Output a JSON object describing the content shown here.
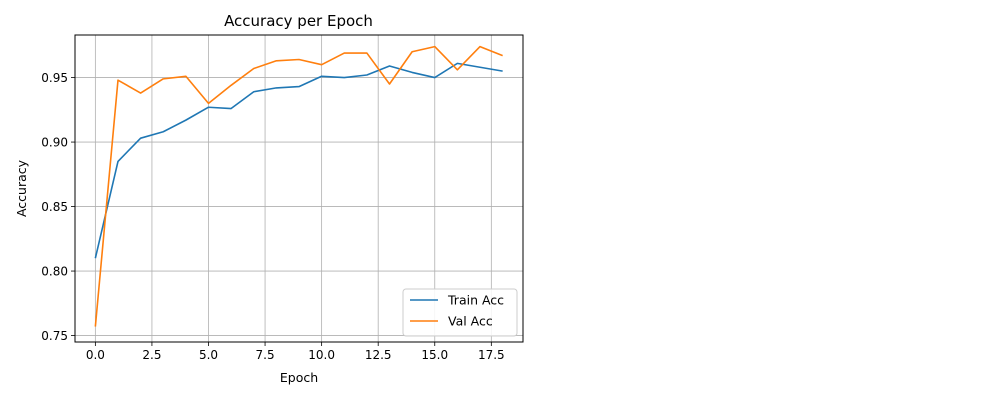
{
  "chart_data": {
    "type": "line",
    "title": "Accuracy per Epoch",
    "xlabel": "Epoch",
    "ylabel": "Accuracy",
    "xlim": [
      -0.9,
      18.9
    ],
    "ylim": [
      0.745,
      0.983
    ],
    "xticks": [
      0.0,
      2.5,
      5.0,
      7.5,
      10.0,
      12.5,
      15.0,
      17.5
    ],
    "xtick_labels": [
      "0.0",
      "2.5",
      "5.0",
      "7.5",
      "10.0",
      "12.5",
      "15.0",
      "17.5"
    ],
    "yticks": [
      0.75,
      0.8,
      0.85,
      0.9,
      0.95
    ],
    "ytick_labels": [
      "0.75",
      "0.80",
      "0.85",
      "0.90",
      "0.95"
    ],
    "grid": true,
    "legend_position": "lower-right",
    "x": [
      0,
      1,
      2,
      3,
      4,
      5,
      6,
      7,
      8,
      9,
      10,
      11,
      12,
      13,
      14,
      15,
      16,
      17,
      18
    ],
    "series": [
      {
        "name": "Train Acc",
        "color": "#1f77b4",
        "values": [
          0.81,
          0.885,
          0.903,
          0.908,
          0.917,
          0.927,
          0.926,
          0.939,
          0.942,
          0.943,
          0.951,
          0.95,
          0.952,
          0.959,
          0.954,
          0.95,
          0.961,
          0.958,
          0.955
        ]
      },
      {
        "name": "Val Acc",
        "color": "#ff7f0e",
        "values": [
          0.757,
          0.948,
          0.938,
          0.949,
          0.951,
          0.93,
          0.944,
          0.957,
          0.963,
          0.964,
          0.96,
          0.969,
          0.969,
          0.945,
          0.97,
          0.974,
          0.956,
          0.974,
          0.967
        ]
      }
    ]
  }
}
